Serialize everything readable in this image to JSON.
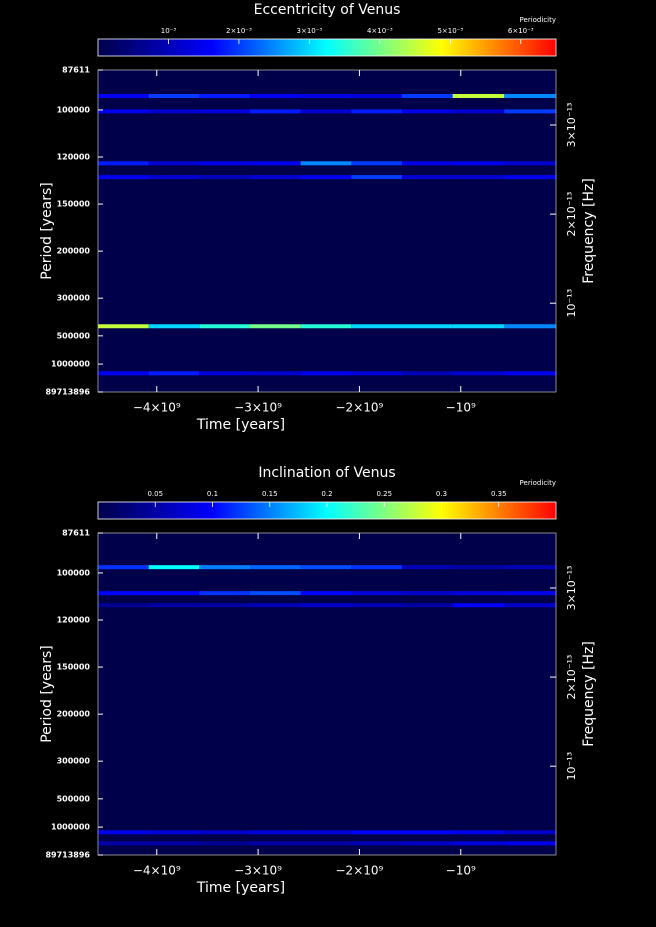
{
  "chart_data": [
    {
      "type": "heatmap",
      "title": "Eccentricity of Venus",
      "x_label": "Time [years]",
      "y_label": "Period [years]",
      "y2_label": "Frequency [Hz]",
      "colorbar_label": "Periodicity",
      "x": [
        -4330000000,
        -3830000000,
        -3330000000,
        -2830000000,
        -2330000000,
        -1830000000,
        -1330000000,
        -830000000,
        -310000000
      ],
      "y": [
        95300,
        100500,
        123300,
        131200,
        427500,
        1485000
      ],
      "z": [
        [
          0.0015,
          0.002,
          0.0018,
          0.0015,
          0.0014,
          0.0013,
          0.002,
          0.0045,
          0.0025
        ],
        [
          0.0015,
          0.0012,
          0.0013,
          0.0018,
          0.0012,
          0.0018,
          0.0014,
          0.0012,
          0.002
        ],
        [
          0.0018,
          0.0012,
          0.0014,
          0.0015,
          0.0025,
          0.002,
          0.0014,
          0.0015,
          0.0012
        ],
        [
          0.0015,
          0.0012,
          0.001,
          0.0012,
          0.0015,
          0.002,
          0.0012,
          0.0012,
          0.0015
        ],
        [
          0.0045,
          0.003,
          0.0035,
          0.004,
          0.0035,
          0.003,
          0.003,
          0.003,
          0.0025
        ],
        [
          0.0015,
          0.0018,
          0.0013,
          0.0012,
          0.0015,
          0.0013,
          0.001,
          0.0012,
          0.0015
        ]
      ],
      "xlim": [
        -4580000000,
        -60000000
      ],
      "xticks": [
        {
          "value": -4000000000,
          "label": "−4×10⁹"
        },
        {
          "value": -3000000000,
          "label": "−3×10⁹"
        },
        {
          "value": -2000000000,
          "label": "−2×10⁹"
        },
        {
          "value": -1000000000,
          "label": "−10⁹"
        }
      ],
      "y_scale": "reciprocal",
      "ylim": [
        89713896,
        87611
      ],
      "yticks": [
        87611,
        100000,
        120000,
        150000,
        200000,
        300000,
        500000,
        1000000,
        89713896
      ],
      "y2lim": [
        3.53e-16,
        3.617e-13
      ],
      "y2ticks": [
        {
          "value": 1e-13,
          "label": "10⁻¹³"
        },
        {
          "value": 2e-13,
          "label": "2×10⁻¹³"
        },
        {
          "value": 3e-13,
          "label": "3×10⁻¹³"
        }
      ],
      "clim": [
        0,
        0.0065
      ],
      "cticks": [
        {
          "value": 0.001,
          "label": "10⁻³"
        },
        {
          "value": 0.002,
          "label": "2×10⁻³"
        },
        {
          "value": 0.003,
          "label": "3×10⁻³"
        },
        {
          "value": 0.004,
          "label": "4×10⁻³"
        },
        {
          "value": 0.005,
          "label": "5×10⁻³"
        },
        {
          "value": 0.006,
          "label": "6×10⁻³"
        }
      ],
      "colormap": [
        "#00004a",
        "#0000ff",
        "#00ffff",
        "#ffff00",
        "#ff0000"
      ]
    },
    {
      "type": "heatmap",
      "title": "Inclination of Venus",
      "x_label": "Time [years]",
      "y_label": "Period [years]",
      "y2_label": "Frequency [Hz]",
      "colorbar_label": "Periodicity",
      "x": [
        -4330000000,
        -3830000000,
        -3330000000,
        -2830000000,
        -2330000000,
        -1830000000,
        -1330000000,
        -830000000,
        -310000000
      ],
      "y": [
        98000,
        107700,
        112900,
        1227000,
        2353000
      ],
      "z": [
        [
          0.12,
          0.2,
          0.15,
          0.14,
          0.13,
          0.12,
          0.06,
          0.05,
          0.06
        ],
        [
          0.1,
          0.1,
          0.12,
          0.13,
          0.1,
          0.08,
          0.07,
          0.08,
          0.09
        ],
        [
          0.04,
          0.05,
          0.05,
          0.06,
          0.07,
          0.06,
          0.05,
          0.1,
          0.07
        ],
        [
          0.09,
          0.08,
          0.07,
          0.08,
          0.08,
          0.1,
          0.1,
          0.09,
          0.07
        ],
        [
          0.05,
          0.05,
          0.04,
          0.05,
          0.05,
          0.06,
          0.07,
          0.08,
          0.09
        ]
      ],
      "xlim": [
        -4580000000,
        -60000000
      ],
      "xticks": [
        {
          "value": -4000000000,
          "label": "−4×10⁹"
        },
        {
          "value": -3000000000,
          "label": "−3×10⁹"
        },
        {
          "value": -2000000000,
          "label": "−2×10⁹"
        },
        {
          "value": -1000000000,
          "label": "−10⁹"
        }
      ],
      "y_scale": "reciprocal",
      "ylim": [
        89713896,
        87611
      ],
      "yticks": [
        87611,
        100000,
        120000,
        150000,
        200000,
        300000,
        500000,
        1000000,
        89713896
      ],
      "y2lim": [
        3.53e-16,
        3.617e-13
      ],
      "y2ticks": [
        {
          "value": 1e-13,
          "label": "10⁻¹³"
        },
        {
          "value": 2e-13,
          "label": "2×10⁻¹³"
        },
        {
          "value": 3e-13,
          "label": "3×10⁻¹³"
        }
      ],
      "clim": [
        0,
        0.4
      ],
      "cticks": [
        0.05,
        0.1,
        0.15,
        0.2,
        0.25,
        0.3,
        0.35
      ],
      "colormap": [
        "#00004a",
        "#0000ff",
        "#00ffff",
        "#ffff00",
        "#ff0000"
      ]
    }
  ]
}
